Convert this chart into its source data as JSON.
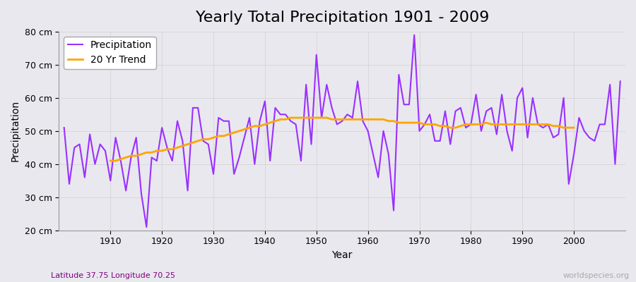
{
  "title": "Yearly Total Precipitation 1901 - 2009",
  "xlabel": "Year",
  "ylabel": "Precipitation",
  "subtitle": "Latitude 37.75 Longitude 70.25",
  "watermark": "worldspecies.org",
  "ylim": [
    20,
    80
  ],
  "yticks": [
    20,
    30,
    40,
    50,
    60,
    70,
    80
  ],
  "ytick_labels": [
    "20 cm",
    "30 cm",
    "40 cm",
    "50 cm",
    "60 cm",
    "70 cm",
    "80 cm"
  ],
  "precipitation_color": "#9B30FF",
  "trend_color": "#FFA500",
  "background_color": "#E8E8EE",
  "plot_bg_color": "#E8E8EE",
  "years": [
    1901,
    1902,
    1903,
    1904,
    1905,
    1906,
    1907,
    1908,
    1909,
    1910,
    1911,
    1912,
    1913,
    1914,
    1915,
    1916,
    1917,
    1918,
    1919,
    1920,
    1921,
    1922,
    1923,
    1924,
    1925,
    1926,
    1927,
    1928,
    1929,
    1930,
    1931,
    1932,
    1933,
    1934,
    1935,
    1936,
    1937,
    1938,
    1939,
    1940,
    1941,
    1942,
    1943,
    1944,
    1945,
    1946,
    1947,
    1948,
    1949,
    1950,
    1951,
    1952,
    1953,
    1954,
    1955,
    1956,
    1957,
    1958,
    1959,
    1960,
    1961,
    1962,
    1963,
    1964,
    1965,
    1966,
    1967,
    1968,
    1969,
    1970,
    1971,
    1972,
    1973,
    1974,
    1975,
    1976,
    1977,
    1978,
    1979,
    1980,
    1981,
    1982,
    1983,
    1984,
    1985,
    1986,
    1987,
    1988,
    1989,
    1990,
    1991,
    1992,
    1993,
    1994,
    1995,
    1996,
    1997,
    1998,
    1999,
    2000,
    2001,
    2002,
    2003,
    2004,
    2005,
    2006,
    2007,
    2008,
    2009
  ],
  "precipitation": [
    51,
    34,
    45,
    46,
    36,
    49,
    40,
    46,
    44,
    35,
    48,
    41,
    32,
    42,
    48,
    31,
    21,
    42,
    41,
    51,
    45,
    41,
    53,
    47,
    32,
    57,
    57,
    47,
    46,
    37,
    54,
    53,
    53,
    37,
    42,
    48,
    54,
    40,
    53,
    59,
    41,
    57,
    55,
    55,
    53,
    52,
    41,
    64,
    46,
    73,
    54,
    64,
    57,
    52,
    53,
    55,
    54,
    65,
    53,
    50,
    43,
    36,
    50,
    43,
    26,
    67,
    58,
    58,
    79,
    50,
    52,
    55,
    47,
    47,
    56,
    46,
    56,
    57,
    51,
    52,
    61,
    50,
    56,
    57,
    49,
    61,
    50,
    44,
    60,
    63,
    48,
    60,
    52,
    51,
    52,
    48,
    49,
    60,
    34,
    43,
    54,
    50,
    48,
    47,
    52,
    52,
    64,
    40,
    65
  ],
  "trend_years": [
    1910,
    1911,
    1912,
    1913,
    1914,
    1915,
    1916,
    1917,
    1918,
    1919,
    1920,
    1921,
    1922,
    1923,
    1924,
    1925,
    1926,
    1927,
    1928,
    1929,
    1930,
    1931,
    1932,
    1933,
    1934,
    1935,
    1936,
    1937,
    1938,
    1939,
    1940,
    1941,
    1942,
    1943,
    1944,
    1945,
    1946,
    1947,
    1948,
    1949,
    1950,
    1951,
    1952,
    1953,
    1954,
    1955,
    1956,
    1957,
    1958,
    1959,
    1960,
    1961,
    1962,
    1963,
    1964,
    1965,
    1966,
    1967,
    1968,
    1969,
    1970,
    1971,
    1972,
    1973,
    1974,
    1975,
    1976,
    1977,
    1978,
    1979,
    1980,
    1981,
    1982,
    1983,
    1984,
    1985,
    1986,
    1987,
    1988,
    1989,
    1990,
    1991,
    1992,
    1993,
    1994,
    1995,
    1996,
    1997,
    1998,
    1999,
    2000
  ],
  "trend": [
    41.0,
    41.0,
    41.5,
    42.0,
    42.5,
    42.5,
    43.0,
    43.5,
    43.5,
    44.0,
    44.0,
    44.5,
    44.5,
    45.0,
    45.5,
    46.0,
    46.5,
    47.0,
    47.5,
    47.5,
    48.0,
    48.5,
    48.5,
    49.0,
    49.5,
    50.0,
    50.5,
    51.0,
    51.5,
    51.5,
    52.0,
    52.5,
    53.0,
    53.5,
    53.5,
    54.0,
    54.0,
    54.0,
    54.0,
    54.0,
    54.0,
    54.0,
    54.0,
    53.5,
    53.5,
    53.5,
    53.5,
    53.5,
    53.5,
    53.5,
    53.5,
    53.5,
    53.5,
    53.5,
    53.0,
    53.0,
    52.5,
    52.5,
    52.5,
    52.5,
    52.5,
    52.0,
    52.0,
    52.0,
    51.5,
    51.5,
    51.0,
    51.0,
    51.5,
    52.0,
    52.0,
    52.0,
    52.0,
    52.5,
    52.0,
    52.0,
    52.0,
    52.0,
    52.0,
    52.0,
    52.0,
    52.0,
    52.0,
    52.0,
    52.0,
    52.0,
    51.5,
    51.5,
    51.0,
    51.0,
    51.0
  ],
  "legend_box_color": "#FFFFFF",
  "grid_color": "#CCCCCC",
  "title_fontsize": 16,
  "label_fontsize": 10,
  "tick_fontsize": 9
}
